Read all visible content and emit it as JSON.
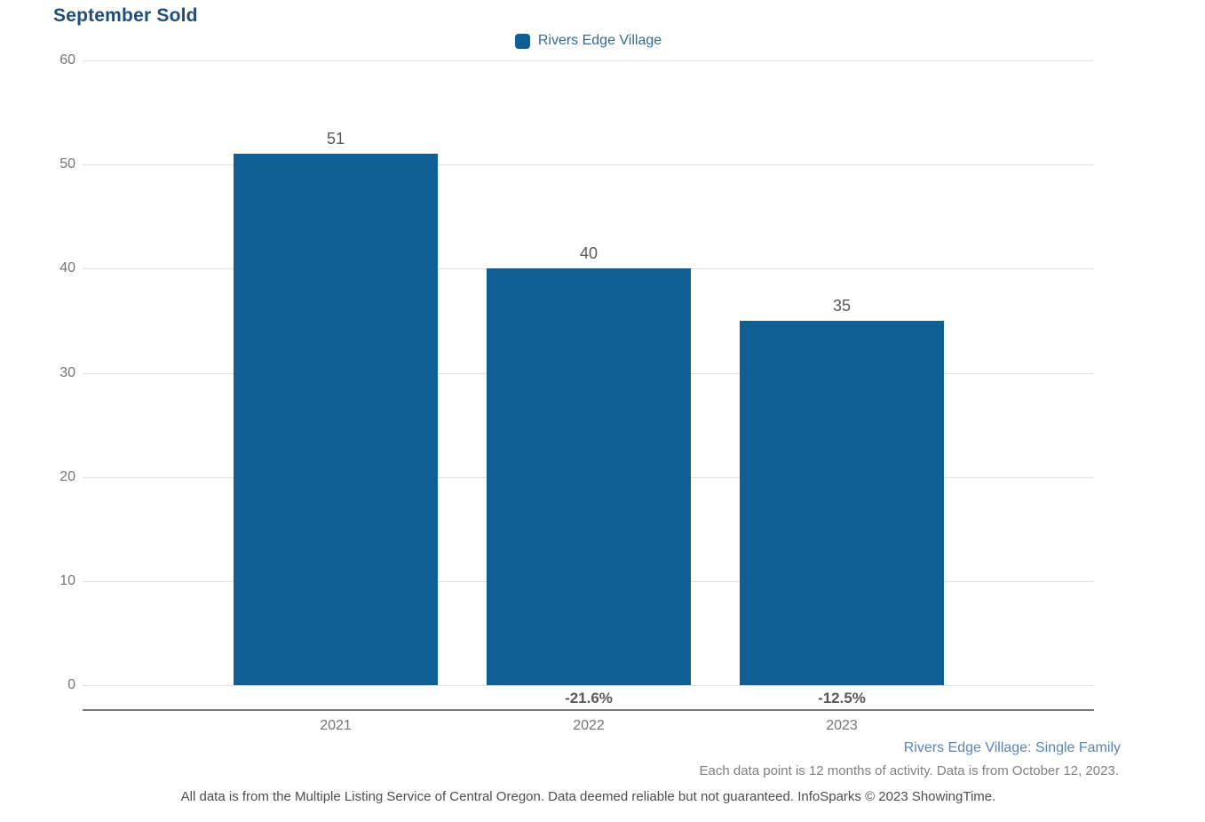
{
  "title": "September Sold",
  "chart_data": {
    "type": "bar",
    "title": "September Sold",
    "categories": [
      "2021",
      "2022",
      "2023"
    ],
    "series": [
      {
        "name": "Rivers Edge Village",
        "values": [
          51,
          40,
          35
        ]
      }
    ],
    "pct_change": [
      "",
      "-21.6%",
      "-12.5%"
    ],
    "ylim": [
      0,
      60
    ],
    "yticks": [
      60,
      50,
      40,
      30,
      20,
      10,
      0
    ],
    "grid": true,
    "legend_position": "top-center",
    "bar_color": "#0F5E94",
    "xlabel": "",
    "ylabel": ""
  },
  "footer": {
    "series_note": "Rivers Edge Village: Single Family",
    "data_note": "Each data point is 12 months of activity. Data is from October 12, 2023.",
    "disclaimer": "All data is from the Multiple Listing Service of Central Oregon. Data deemed reliable but not guaranteed. InfoSparks © 2023 ShowingTime."
  },
  "colors": {
    "bar": "#0F5E94",
    "title": "#1F4E79",
    "legend_text": "#336A93",
    "axis_line": "#77787B",
    "gridline": "#E0E0E0",
    "tick_text": "#757575",
    "value_text": "#58595B",
    "footer_series": "#5B84B5"
  }
}
